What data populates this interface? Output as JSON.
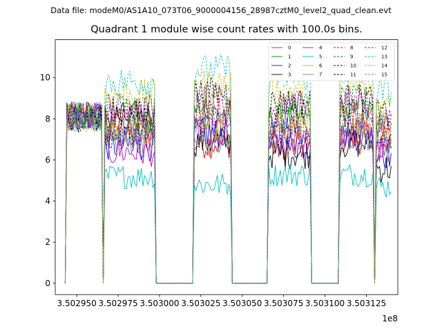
{
  "suptitle": "Data file: modeM0/AS1A10_073T06_9000004156_28987cztM0_level2_quad_clean.evt",
  "title": "Quadrant 1 module wise count rates with 100.0s bins.",
  "chart_data": {
    "type": "line",
    "x_offset_label": "1e8",
    "x_tick_labels": [
      "3.502950",
      "3.502975",
      "3.503000",
      "3.503025",
      "3.503050",
      "3.503075",
      "3.503100",
      "3.503125"
    ],
    "x_ticks": [
      350295000,
      350297500,
      350300000,
      350302500,
      350305000,
      350307500,
      350310000,
      350312500
    ],
    "y_ticks": [
      0,
      2,
      4,
      6,
      8,
      10
    ],
    "xlim": [
      350293700,
      350314400
    ],
    "ylim": [
      -0.55,
      11.85
    ],
    "grid": false,
    "legend_position": "upper right",
    "segments": [
      [
        350294300,
        350294400,
        350296500,
        350296600
      ],
      [
        350296600,
        350296700,
        350299700,
        350299800
      ],
      [
        350299800,
        350299900,
        350301900,
        350302000
      ],
      [
        350302000,
        350302100,
        350304300,
        350304400
      ],
      [
        350304400,
        350304500,
        350306400,
        350306500
      ],
      [
        350306500,
        350306600,
        350309100,
        350309200
      ],
      [
        350309200,
        350309300,
        350310700,
        350310800
      ],
      [
        350310800,
        350310900,
        350312900,
        350313000
      ],
      [
        350313000,
        350313100,
        350314000,
        350314000
      ]
    ],
    "series": [
      {
        "name": "0",
        "color": "#ff0000",
        "dash": "solid",
        "levels": [
          7.2,
          6.8,
          6.6,
          7.0,
          6.5,
          7.0
        ]
      },
      {
        "name": "1",
        "color": "#008000",
        "dash": "solid",
        "levels": [
          7.6,
          8.3,
          8.0,
          8.3,
          7.5,
          8.2
        ]
      },
      {
        "name": "2",
        "color": "#0000ff",
        "dash": "solid",
        "levels": [
          6.7,
          7.3,
          6.7,
          7.2,
          6.3,
          7.0
        ]
      },
      {
        "name": "3",
        "color": "#000000",
        "dash": "solid",
        "levels": [
          8.1,
          6.9,
          6.3,
          6.8,
          5.6,
          6.6
        ]
      },
      {
        "name": "4",
        "color": "#bf00bf",
        "dash": "solid",
        "levels": [
          6.4,
          7.4,
          7.0,
          7.4,
          6.5,
          7.3
        ]
      },
      {
        "name": "5",
        "color": "#00bfbf",
        "dash": "solid",
        "levels": [
          5.2,
          4.8,
          5.3,
          5.3,
          4.7,
          5.4
        ]
      },
      {
        "name": "6",
        "color": "#bfbf00",
        "dash": "solid",
        "levels": [
          7.3,
          7.6,
          7.8,
          7.9,
          7.0,
          7.8
        ]
      },
      {
        "name": "7",
        "color": "#808080",
        "dash": "solid",
        "levels": [
          7.0,
          6.8,
          7.0,
          7.2,
          6.5,
          7.2
        ]
      },
      {
        "name": "8",
        "color": "#ff0000",
        "dash": "dashed",
        "levels": [
          7.9,
          8.3,
          7.7,
          8.2,
          7.6,
          8.2
        ]
      },
      {
        "name": "9",
        "color": "#008000",
        "dash": "dashed",
        "levels": [
          8.6,
          9.0,
          8.6,
          8.9,
          8.0,
          8.8
        ]
      },
      {
        "name": "10",
        "color": "#0000ff",
        "dash": "dashed",
        "levels": [
          7.2,
          7.8,
          7.5,
          7.7,
          6.9,
          7.8
        ]
      },
      {
        "name": "11",
        "color": "#000000",
        "dash": "dashed",
        "levels": [
          8.3,
          9.3,
          8.8,
          9.0,
          8.2,
          9.0
        ]
      },
      {
        "name": "12",
        "color": "#bf00bf",
        "dash": "dashed",
        "levels": [
          8.5,
          8.9,
          8.6,
          8.8,
          7.9,
          8.7
        ]
      },
      {
        "name": "13",
        "color": "#00bfbf",
        "dash": "dashed",
        "levels": [
          9.8,
          10.4,
          10.1,
          10.3,
          9.3,
          10.2
        ]
      },
      {
        "name": "14",
        "color": "#bfbf00",
        "dash": "dashed",
        "levels": [
          9.2,
          9.7,
          9.4,
          9.6,
          8.7,
          9.5
        ]
      },
      {
        "name": "15",
        "color": "#808080",
        "dash": "dashed",
        "levels": [
          7.6,
          8.0,
          7.7,
          7.9,
          7.2,
          7.9
        ]
      }
    ]
  }
}
